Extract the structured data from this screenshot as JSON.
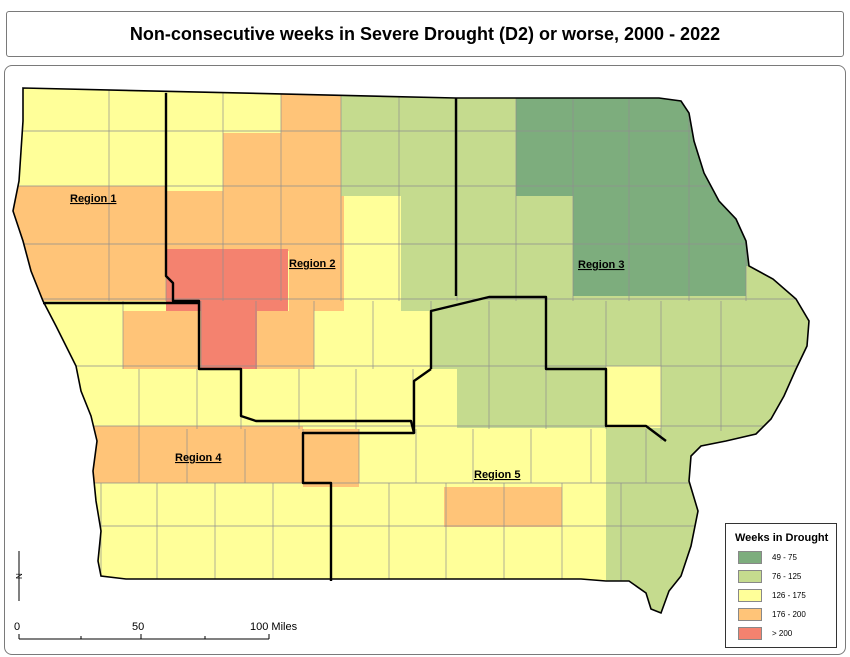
{
  "title": "Non-consecutive weeks in Severe Drought (D2) or worse, 2000 - 2022",
  "regions": [
    {
      "label": "Region 1"
    },
    {
      "label": "Region 2"
    },
    {
      "label": "Region 3"
    },
    {
      "label": "Region 4"
    },
    {
      "label": "Region 5"
    }
  ],
  "legend": {
    "title": "Weeks in Drought",
    "items": [
      {
        "label": "49 - 75",
        "color": "#7dad7d"
      },
      {
        "label": "76 - 125",
        "color": "#c5db8e"
      },
      {
        "label": "126 - 175",
        "color": "#ffff99"
      },
      {
        "label": "176 - 200",
        "color": "#ffc478"
      },
      {
        "label": "> 200",
        "color": "#f4826f"
      }
    ]
  },
  "scale_bar": {
    "labels": [
      "0",
      "50",
      "100 Miles"
    ]
  },
  "north_arrow": {
    "label": "N"
  }
}
